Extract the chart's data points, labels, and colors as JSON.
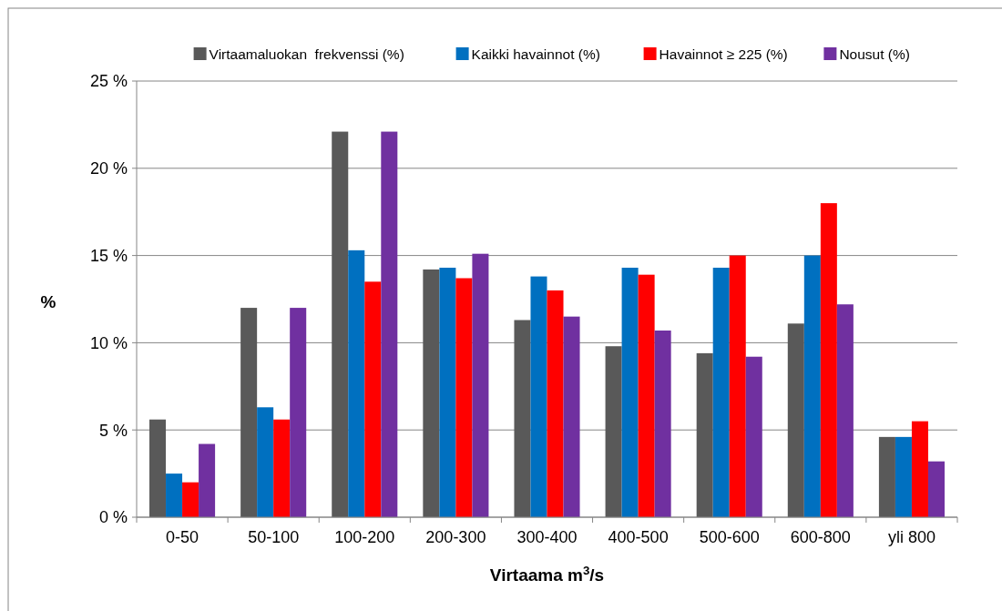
{
  "chart_data": {
    "type": "bar",
    "xlabel": "Virtaama m$^{3}$/s",
    "ylabel": "%",
    "categories": [
      "0-50",
      "50-100",
      "100-200",
      "200-300",
      "300-400",
      "400-500",
      "500-600",
      "600-800",
      "yli 800"
    ],
    "series": [
      {
        "name": "Virtaamaluokan  frekvenssi (%)",
        "color": "#595959",
        "values": [
          5.6,
          12.0,
          22.1,
          14.2,
          11.3,
          9.8,
          9.4,
          11.1,
          4.6
        ]
      },
      {
        "name": "Kaikki havainnot (%)",
        "color": "#0070c0",
        "values": [
          2.5,
          6.3,
          15.3,
          14.3,
          13.8,
          14.3,
          14.3,
          15.0,
          4.6
        ]
      },
      {
        "name": "Havainnot ≥ 225 (%)",
        "color": "#ff0000",
        "values": [
          2.0,
          5.6,
          13.5,
          13.7,
          13.0,
          13.9,
          15.0,
          18.0,
          5.5
        ]
      },
      {
        "name": "Nousut (%)",
        "color": "#7030a0",
        "values": [
          4.2,
          12.0,
          22.1,
          15.1,
          11.5,
          10.7,
          9.2,
          12.2,
          3.2
        ]
      }
    ],
    "ylim": [
      0,
      25
    ],
    "yticks": [
      {
        "value": 0,
        "label": "0 %"
      },
      {
        "value": 5,
        "label": "5 %"
      },
      {
        "value": 10,
        "label": "10 %"
      },
      {
        "value": 15,
        "label": "15 %"
      },
      {
        "value": 20,
        "label": "20 %"
      },
      {
        "value": 25,
        "label": "25 %"
      }
    ],
    "grid": "y",
    "legend": "top"
  }
}
